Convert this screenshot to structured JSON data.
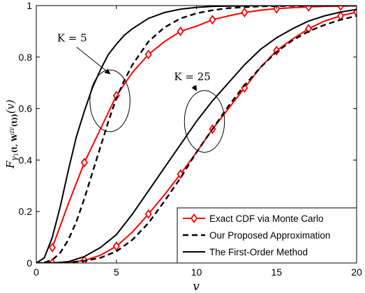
{
  "chart_data": {
    "type": "line",
    "xlabel": "v",
    "ylabel": {
      "main": "F",
      "sub": "γ",
      "sub_index": "1",
      "arg_pre": "(t, ",
      "arg_bold": "W",
      "arg_sup": "ZF",
      "arg_post": "(t))",
      "var": "(v)"
    },
    "xlim": [
      0,
      20
    ],
    "ylim": [
      0,
      1
    ],
    "xticks": [
      "0",
      "5",
      "10",
      "15",
      "20"
    ],
    "yticks": [
      "0",
      "0.2",
      "0.4",
      "0.6",
      "0.8",
      "1"
    ],
    "grid": false,
    "legend_position": "bottom-right",
    "series": [
      {
        "name": "Exact CDF via Monte Carlo",
        "group": "K = 5",
        "color": "#ff0000",
        "style": "solid-diamond",
        "x": [
          1,
          2,
          3,
          4,
          5,
          6,
          7,
          8,
          9,
          10,
          11,
          12,
          13,
          14,
          15,
          16,
          17,
          18,
          19,
          20
        ],
        "y": [
          0.06,
          0.23,
          0.39,
          0.52,
          0.65,
          0.74,
          0.81,
          0.86,
          0.9,
          0.92,
          0.945,
          0.96,
          0.973,
          0.982,
          0.988,
          0.992,
          0.995,
          0.997,
          0.998,
          0.999
        ],
        "marker_indices": [
          0,
          2,
          4,
          6,
          8,
          10,
          12,
          14,
          16,
          18
        ]
      },
      {
        "name": "Our Proposed Approximation",
        "group": "K = 5",
        "color": "#000000",
        "style": "dashed",
        "x": [
          0.5,
          1,
          1.5,
          2,
          2.5,
          3,
          3.5,
          4,
          4.5,
          5,
          5.5,
          6,
          7,
          8,
          9,
          10,
          11,
          12,
          13,
          14,
          15,
          16,
          17,
          18,
          19,
          20
        ],
        "y": [
          0.002,
          0.012,
          0.04,
          0.09,
          0.16,
          0.25,
          0.35,
          0.45,
          0.55,
          0.64,
          0.71,
          0.77,
          0.86,
          0.915,
          0.95,
          0.97,
          0.982,
          0.99,
          0.994,
          0.997,
          0.998,
          0.999,
          0.9995,
          1.0,
          1.0,
          1.0
        ]
      },
      {
        "name": "The First-Order Method",
        "group": "K = 5",
        "color": "#000000",
        "style": "solid",
        "x": [
          0,
          0.5,
          1,
          1.5,
          2,
          2.5,
          3,
          3.5,
          4,
          4.5,
          5,
          5.5,
          6,
          7,
          8,
          9,
          10,
          11,
          12,
          13,
          14,
          15,
          16,
          17,
          18,
          19,
          20
        ],
        "y": [
          0,
          0.02,
          0.1,
          0.22,
          0.36,
          0.49,
          0.59,
          0.68,
          0.75,
          0.81,
          0.85,
          0.885,
          0.91,
          0.95,
          0.973,
          0.986,
          0.993,
          0.997,
          0.998,
          0.999,
          1.0,
          1.0,
          1.0,
          1.0,
          1.0,
          1.0,
          1.0
        ]
      },
      {
        "name": "Exact CDF via Monte Carlo",
        "group": "K = 25",
        "color": "#ff0000",
        "style": "solid-diamond",
        "x": [
          1,
          2,
          3,
          4,
          5,
          6,
          7,
          8,
          9,
          10,
          11,
          12,
          13,
          14,
          15,
          16,
          17,
          18,
          19,
          20
        ],
        "y": [
          0.0,
          0.002,
          0.01,
          0.03,
          0.065,
          0.12,
          0.19,
          0.265,
          0.345,
          0.43,
          0.52,
          0.6,
          0.68,
          0.76,
          0.825,
          0.87,
          0.91,
          0.94,
          0.96,
          0.975
        ],
        "marker_indices": [
          0,
          2,
          4,
          6,
          8,
          10,
          12,
          14,
          16,
          18,
          19
        ]
      },
      {
        "name": "Our Proposed Approximation",
        "group": "K = 25",
        "color": "#000000",
        "style": "dashed",
        "x": [
          0,
          1,
          2,
          3,
          4,
          5,
          6,
          7,
          8,
          9,
          10,
          11,
          12,
          13,
          14,
          15,
          16,
          17,
          18,
          19,
          20
        ],
        "y": [
          0,
          0.0,
          0.002,
          0.008,
          0.02,
          0.045,
          0.09,
          0.155,
          0.24,
          0.33,
          0.43,
          0.52,
          0.61,
          0.69,
          0.76,
          0.82,
          0.865,
          0.9,
          0.925,
          0.945,
          0.96
        ]
      },
      {
        "name": "The First-Order Method",
        "group": "K = 25",
        "color": "#000000",
        "style": "solid",
        "x": [
          0,
          1,
          2,
          3,
          4,
          5,
          6,
          7,
          8,
          9,
          10,
          11,
          12,
          13,
          14,
          15,
          16,
          17,
          18,
          19,
          20
        ],
        "y": [
          0,
          0.0,
          0.005,
          0.025,
          0.06,
          0.11,
          0.19,
          0.28,
          0.37,
          0.46,
          0.55,
          0.63,
          0.7,
          0.77,
          0.83,
          0.875,
          0.91,
          0.94,
          0.96,
          0.975,
          0.985
        ]
      }
    ],
    "annotations": [
      {
        "text": "K = 5",
        "ellipse_center": [
          4.6,
          0.63
        ],
        "ellipse_radii": [
          1.25,
          0.12
        ],
        "label_anchor": [
          1.3,
          0.86
        ],
        "arrow_to": [
          4.6,
          0.735
        ]
      },
      {
        "text": "K = 25",
        "ellipse_center": [
          10.5,
          0.55
        ],
        "ellipse_radii": [
          1.25,
          0.12
        ],
        "label_anchor": [
          8.6,
          0.71
        ],
        "arrow_to": [
          10.0,
          0.67
        ]
      }
    ],
    "legend": [
      {
        "label": "Exact CDF via Monte Carlo",
        "color": "#ff0000",
        "style": "solid-diamond"
      },
      {
        "label": "Our Proposed Approximation",
        "color": "#000000",
        "style": "dashed"
      },
      {
        "label": "The First-Order Method",
        "color": "#000000",
        "style": "solid"
      }
    ]
  }
}
